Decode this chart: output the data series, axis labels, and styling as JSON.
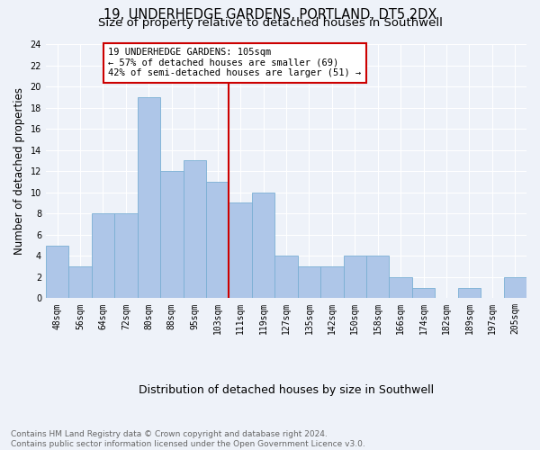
{
  "title": "19, UNDERHEDGE GARDENS, PORTLAND, DT5 2DX",
  "subtitle": "Size of property relative to detached houses in Southwell",
  "xlabel": "Distribution of detached houses by size in Southwell",
  "ylabel": "Number of detached properties",
  "categories": [
    "48sqm",
    "56sqm",
    "64sqm",
    "72sqm",
    "80sqm",
    "88sqm",
    "95sqm",
    "103sqm",
    "111sqm",
    "119sqm",
    "127sqm",
    "135sqm",
    "142sqm",
    "150sqm",
    "158sqm",
    "166sqm",
    "174sqm",
    "182sqm",
    "189sqm",
    "197sqm",
    "205sqm"
  ],
  "values": [
    5,
    3,
    8,
    8,
    19,
    12,
    13,
    11,
    9,
    10,
    4,
    3,
    3,
    4,
    4,
    2,
    1,
    0,
    1,
    0,
    2
  ],
  "bar_color": "#aec6e8",
  "bar_edgecolor": "#7aafd4",
  "vline_x": 7.5,
  "vline_color": "#cc0000",
  "annotation_line1": "19 UNDERHEDGE GARDENS: 105sqm",
  "annotation_line2": "← 57% of detached houses are smaller (69)",
  "annotation_line3": "42% of semi-detached houses are larger (51) →",
  "annotation_box_edgecolor": "#cc0000",
  "ylim": [
    0,
    24
  ],
  "yticks": [
    0,
    2,
    4,
    6,
    8,
    10,
    12,
    14,
    16,
    18,
    20,
    22,
    24
  ],
  "footnote": "Contains HM Land Registry data © Crown copyright and database right 2024.\nContains public sector information licensed under the Open Government Licence v3.0.",
  "bg_color": "#eef2f9",
  "grid_color": "#ffffff",
  "title_fontsize": 10.5,
  "subtitle_fontsize": 9.5,
  "xlabel_fontsize": 9,
  "ylabel_fontsize": 8.5,
  "tick_fontsize": 7,
  "footnote_fontsize": 6.5,
  "annotation_fontsize": 7.5
}
